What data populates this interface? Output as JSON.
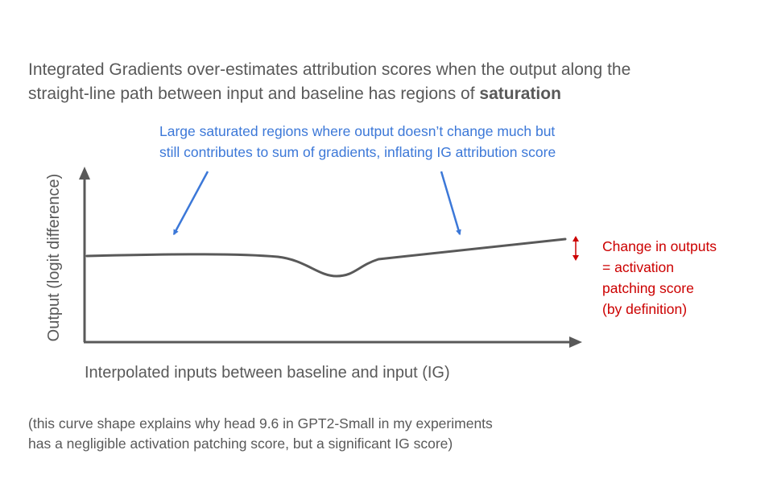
{
  "headline": {
    "line1": "Integrated Gradients over-estimates attribution scores when the output along the",
    "line2_prefix": "straight-line path between input and baseline has regions of ",
    "line2_bold": "saturation"
  },
  "annotation_blue": {
    "line1": "Large saturated regions where output doesn’t change much but",
    "line2": "still contributes to sum of gradients, inflating IG attribution score",
    "color": "#3c78d8"
  },
  "annotation_red": {
    "line1": "Change in outputs",
    "line2": "= activation",
    "line3": "patching score",
    "line4": "(by definition)",
    "color": "#cc0000"
  },
  "axes": {
    "x_label": "Interpolated inputs between baseline and input (IG)",
    "y_label": "Output (logit difference)",
    "color": "#595959"
  },
  "footnote": {
    "line1": "(this curve shape explains why head 9.6 in GPT2-Small in my experiments",
    "line2": "has a negligible activation patching score, but a significant IG score)"
  }
}
